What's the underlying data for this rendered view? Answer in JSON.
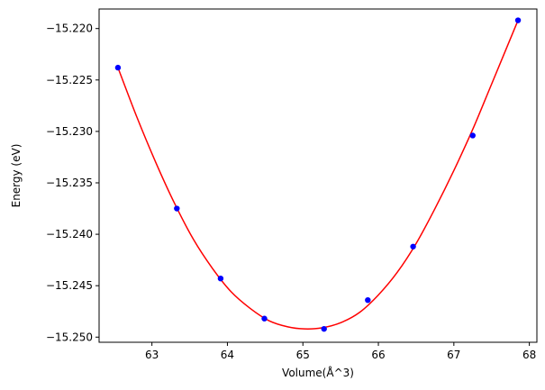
{
  "chart_data": {
    "type": "scatter",
    "title": "",
    "xlabel": "Volume(Å^3)",
    "ylabel": "Energy (eV)",
    "xlim": [
      62.3,
      68.1
    ],
    "ylim": [
      -15.2505,
      -15.2181
    ],
    "grid": false,
    "x_ticks": [
      63,
      64,
      65,
      66,
      67,
      68
    ],
    "x_tick_labels": [
      "63",
      "64",
      "65",
      "66",
      "67",
      "68"
    ],
    "y_ticks": [
      -15.22,
      -15.225,
      -15.23,
      -15.235,
      -15.24,
      -15.245,
      -15.25
    ],
    "y_tick_labels": [
      "−15.220",
      "−15.225",
      "−15.230",
      "−15.235",
      "−15.240",
      "−15.245",
      "−15.250"
    ],
    "series": [
      {
        "kind": "scatter",
        "color": "#0000ff",
        "x": [
          62.55,
          63.33,
          63.91,
          64.49,
          65.28,
          65.86,
          66.46,
          67.25,
          67.85
        ],
        "y": [
          -15.2238,
          -15.2375,
          -15.2443,
          -15.2482,
          -15.2492,
          -15.2464,
          -15.2412,
          -15.2304,
          -15.2192
        ]
      },
      {
        "kind": "line",
        "color": "#ff0000",
        "x": [
          62.55,
          62.8,
          63.05,
          63.3,
          63.55,
          63.8,
          64.05,
          64.3,
          64.55,
          64.8,
          65.02,
          65.25,
          65.5,
          65.75,
          66.0,
          66.25,
          66.5,
          66.75,
          67.0,
          67.25,
          67.5,
          67.85
        ],
        "y": [
          -15.2238,
          -15.2286,
          -15.233,
          -15.237,
          -15.2405,
          -15.2433,
          -15.2456,
          -15.2472,
          -15.2484,
          -15.249,
          -15.2492,
          -15.2491,
          -15.2486,
          -15.2476,
          -15.2459,
          -15.2437,
          -15.2409,
          -15.2375,
          -15.2338,
          -15.2298,
          -15.2254,
          -15.2192
        ]
      }
    ]
  }
}
